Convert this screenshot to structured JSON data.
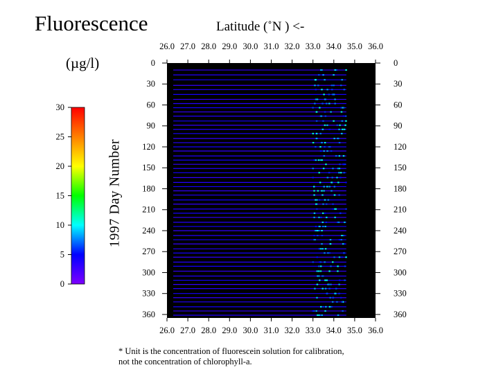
{
  "chart_data": {
    "type": "heatmap",
    "title": "Fluorescence",
    "xlabel": "Latitude  (˚N )  <-",
    "ylabel": "1997   Day  Number",
    "colorbar_label": "(µg/l)",
    "colorbar_ticks": [
      "0",
      "5",
      "10",
      "15",
      "20",
      "25",
      "30"
    ],
    "colorbar_range": [
      0,
      30
    ],
    "x_ticks": [
      "26.0",
      "27.0",
      "28.0",
      "29.0",
      "30.0",
      "31.0",
      "32.0",
      "33.0",
      "34.0",
      "35.0",
      "36.0"
    ],
    "xlim": [
      26.0,
      36.0
    ],
    "y_ticks": [
      "0",
      "30",
      "60",
      "90",
      "120",
      "150",
      "180",
      "210",
      "240",
      "270",
      "300",
      "330",
      "360"
    ],
    "ylim": [
      0,
      365
    ],
    "background_color": "#000000",
    "colormap": [
      "#7d00ff",
      "#0000ff",
      "#00ffff",
      "#00ff00",
      "#ffff00",
      "#ff8000",
      "#ff0000"
    ],
    "transect_lat_range": [
      26.3,
      34.6
    ],
    "transect_days": [
      10,
      17,
      24,
      32,
      38,
      45,
      52,
      58,
      64,
      70,
      76,
      83,
      89,
      95,
      101,
      108,
      114,
      120,
      126,
      133,
      139,
      145,
      151,
      157,
      164,
      171,
      177,
      183,
      189,
      196,
      202,
      209,
      215,
      221,
      228,
      234,
      240,
      247,
      253,
      259,
      266,
      272,
      278,
      285,
      291,
      298,
      305,
      311,
      317,
      323,
      330,
      336,
      342,
      349,
      355,
      361
    ],
    "typical_value": 3,
    "footnote": "* Unit is the concentration of fluorescein solution for calibration,\nnot the concentration of chlorophyll-a."
  }
}
